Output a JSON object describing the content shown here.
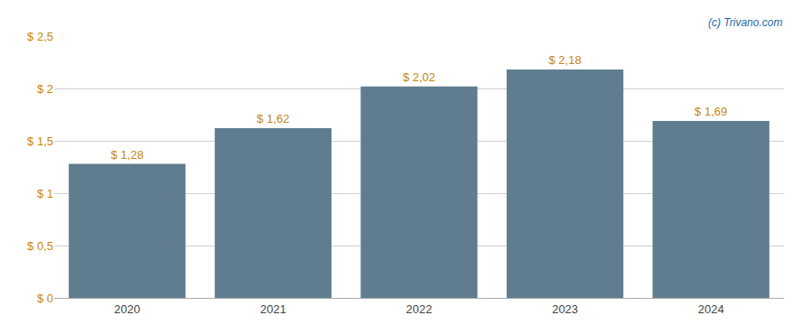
{
  "chart_data": {
    "type": "bar",
    "categories": [
      "2020",
      "2021",
      "2022",
      "2023",
      "2024"
    ],
    "values": [
      1.28,
      1.62,
      2.02,
      2.18,
      1.69
    ],
    "value_labels": [
      "$ 1,28",
      "$ 1,62",
      "$ 2,02",
      "$ 2,18",
      "$ 1,69"
    ],
    "data_labels": true,
    "color": "#607d8f",
    "ylim": [
      0,
      2.5
    ],
    "yticks": [
      {
        "value": 0,
        "label": "$ 0"
      },
      {
        "value": 0.5,
        "label": "$ 0,5"
      },
      {
        "value": 1.0,
        "label": "$ 1"
      },
      {
        "value": 1.5,
        "label": "$ 1,5"
      },
      {
        "value": 2.0,
        "label": "$ 2"
      },
      {
        "value": 2.5,
        "label": "$ 2,5"
      }
    ],
    "grid": true,
    "annotations": [
      "(c) Trivano.com"
    ]
  }
}
